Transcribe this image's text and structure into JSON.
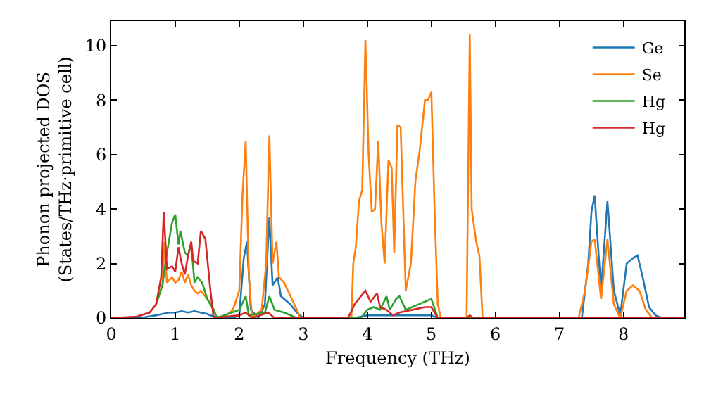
{
  "chart_data": {
    "type": "line",
    "xlabel": "Frequency (THz)",
    "ylabel": "Phonon projected DOS\n(States/THz·primitive cell)",
    "xlim": [
      0,
      8.95
    ],
    "ylim": [
      0,
      10.9
    ],
    "xticks": [
      0,
      1,
      2,
      3,
      4,
      5,
      6,
      7,
      8
    ],
    "yticks": [
      0,
      2,
      4,
      6,
      8,
      10
    ],
    "grid": false,
    "legend": "top right",
    "marker": "none",
    "line_style": "solid",
    "series": [
      {
        "name": "Ge",
        "color": "#1f77b4",
        "x": [
          0,
          0.3,
          0.5,
          0.7,
          0.8,
          0.9,
          1.0,
          1.1,
          1.2,
          1.3,
          1.4,
          1.5,
          1.6,
          1.9,
          2.0,
          2.07,
          2.12,
          2.18,
          2.3,
          2.4,
          2.47,
          2.52,
          2.6,
          2.65,
          2.8,
          2.9,
          3.0,
          3.8,
          4.0,
          4.5,
          5.0,
          5.1,
          7.35,
          7.45,
          7.5,
          7.55,
          7.65,
          7.75,
          7.85,
          7.95,
          8.05,
          8.15,
          8.22,
          8.3,
          8.4,
          8.5,
          8.6,
          8.95
        ],
        "values": [
          0,
          0,
          0.02,
          0.1,
          0.15,
          0.2,
          0.2,
          0.25,
          0.2,
          0.25,
          0.2,
          0.15,
          0.05,
          0,
          0.1,
          2.2,
          2.8,
          0.3,
          0,
          0.5,
          3.7,
          1.2,
          1.5,
          0.8,
          0.5,
          0.2,
          0,
          0,
          0.1,
          0.1,
          0.1,
          0,
          0,
          2,
          3.9,
          4.5,
          1,
          4.3,
          1,
          0.1,
          2,
          2.2,
          2.3,
          1.5,
          0.4,
          0.1,
          0,
          0
        ]
      },
      {
        "name": "Se",
        "color": "#ff7f0e",
        "x": [
          0.7,
          0.8,
          0.83,
          0.87,
          0.95,
          1.0,
          1.05,
          1.1,
          1.15,
          1.2,
          1.25,
          1.3,
          1.35,
          1.4,
          1.5,
          1.6,
          1.65,
          1.8,
          1.9,
          2.0,
          2.05,
          2.1,
          2.15,
          2.2,
          2.35,
          2.42,
          2.47,
          2.52,
          2.58,
          2.62,
          2.7,
          2.8,
          2.9,
          2.95,
          3.75,
          3.78,
          3.82,
          3.87,
          3.92,
          3.97,
          4.02,
          4.07,
          4.12,
          4.17,
          4.22,
          4.27,
          4.33,
          4.38,
          4.42,
          4.47,
          4.52,
          4.6,
          4.68,
          4.75,
          4.82,
          4.9,
          4.95,
          5.0,
          5.05,
          5.1,
          5.15,
          5.55,
          5.6,
          5.63,
          5.7,
          5.75,
          5.8,
          7.3,
          7.4,
          7.5,
          7.55,
          7.65,
          7.75,
          7.85,
          7.95,
          8.05,
          8.15,
          8.25,
          8.35,
          8.45,
          8.95
        ],
        "values": [
          0.5,
          1.2,
          2.8,
          1.3,
          1.5,
          1.3,
          1.4,
          1.7,
          1.3,
          1.6,
          1.2,
          1,
          0.9,
          1,
          0.7,
          0.3,
          0,
          0.1,
          0.3,
          1,
          4.5,
          6.5,
          1.5,
          0,
          0.3,
          2,
          6.7,
          2,
          2.8,
          1.5,
          1.3,
          0.8,
          0.3,
          0,
          0,
          2,
          2.6,
          4.3,
          4.7,
          10.2,
          6,
          3.9,
          4,
          6.5,
          3.5,
          2,
          5.8,
          5.5,
          2.4,
          7.1,
          7,
          1,
          2,
          5,
          6.2,
          8,
          8,
          8.3,
          4,
          0.5,
          0,
          0,
          10.4,
          4,
          2.8,
          2.3,
          0,
          0,
          1,
          2.8,
          2.9,
          0.7,
          2.9,
          0.5,
          0,
          1,
          1.2,
          1,
          0.3,
          0,
          0
        ]
      },
      {
        "name": "Hg",
        "color": "#2ca02c",
        "x": [
          0.7,
          0.8,
          0.87,
          0.95,
          1.0,
          1.05,
          1.08,
          1.15,
          1.2,
          1.25,
          1.3,
          1.35,
          1.42,
          1.5,
          1.6,
          1.65,
          2.0,
          2.1,
          2.15,
          2.4,
          2.47,
          2.55,
          2.7,
          2.9,
          3.9,
          4.0,
          4.1,
          4.2,
          4.3,
          4.35,
          4.45,
          4.5,
          4.6,
          4.7,
          4.8,
          4.9,
          5.0,
          5.1,
          8.95
        ],
        "values": [
          0.5,
          1.2,
          2.4,
          3.5,
          3.8,
          2.7,
          3.2,
          2.4,
          2.3,
          2.7,
          1.3,
          1.5,
          1.3,
          0.7,
          0.3,
          0,
          0.3,
          0.8,
          0.1,
          0.2,
          0.8,
          0.3,
          0.2,
          0,
          0,
          0.3,
          0.4,
          0.3,
          0.8,
          0.3,
          0.7,
          0.8,
          0.3,
          0.4,
          0.5,
          0.6,
          0.7,
          0,
          0
        ]
      },
      {
        "name": "Hg",
        "color": "#d62728",
        "x": [
          0,
          0.4,
          0.6,
          0.7,
          0.78,
          0.82,
          0.87,
          0.95,
          1.0,
          1.05,
          1.1,
          1.15,
          1.2,
          1.25,
          1.28,
          1.35,
          1.4,
          1.47,
          1.55,
          1.6,
          2.0,
          2.1,
          2.2,
          2.45,
          2.55,
          3.7,
          3.8,
          3.9,
          3.97,
          4.05,
          4.15,
          4.2,
          4.3,
          4.4,
          4.5,
          4.7,
          4.9,
          5.0,
          5.1,
          5.55,
          5.6,
          5.65,
          8.95
        ],
        "values": [
          0,
          0.05,
          0.2,
          0.5,
          1.5,
          3.9,
          1.8,
          1.9,
          1.7,
          2.6,
          2,
          1.6,
          2.3,
          2.8,
          2.1,
          2,
          3.2,
          2.9,
          1,
          0,
          0.1,
          0.2,
          0,
          0.2,
          0,
          0,
          0.5,
          0.8,
          1,
          0.6,
          0.9,
          0.4,
          0.3,
          0.1,
          0.2,
          0.3,
          0.4,
          0.4,
          0,
          0,
          0.1,
          0,
          0
        ]
      }
    ]
  }
}
